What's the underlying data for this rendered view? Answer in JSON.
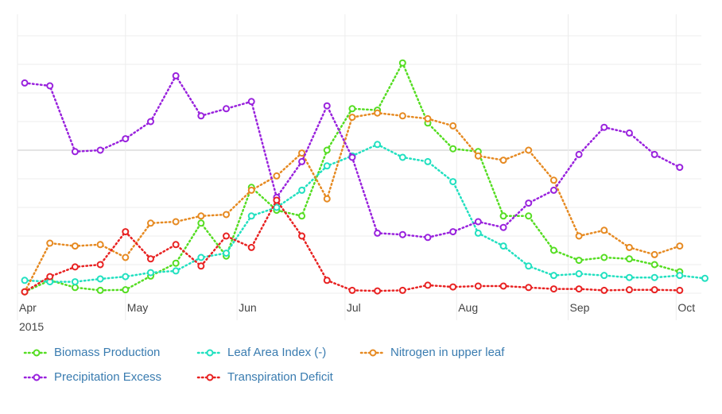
{
  "chart_data": {
    "type": "line",
    "x_axis": {
      "type": "date",
      "range": [
        "2015-04-01",
        "2015-10-08"
      ],
      "ticks": [
        {
          "date": "2015-04-01",
          "label": "Apr",
          "sublabel": "2015"
        },
        {
          "date": "2015-05-01",
          "label": "May"
        },
        {
          "date": "2015-06-01",
          "label": "Jun"
        },
        {
          "date": "2015-07-01",
          "label": "Jul"
        },
        {
          "date": "2015-08-01",
          "label": "Aug"
        },
        {
          "date": "2015-09-01",
          "label": "Sep"
        },
        {
          "date": "2015-10-01",
          "label": "Oct"
        }
      ]
    },
    "y_axis": {
      "range": [
        0,
        10
      ],
      "gridlines": [
        0,
        1,
        2,
        3,
        4,
        5,
        6,
        7,
        8,
        9
      ],
      "highlight_gridline": 5,
      "tick_labels": "none"
    },
    "grid": true,
    "legend_position": "bottom-left",
    "series": [
      {
        "name": "Biomass Production",
        "color": "#55dd22",
        "marker": "circle",
        "line": "dotted",
        "points": [
          [
            "2015-04-03",
            0.05
          ],
          [
            "2015-04-10",
            0.45
          ],
          [
            "2015-04-17",
            0.2
          ],
          [
            "2015-04-24",
            0.1
          ],
          [
            "2015-05-01",
            0.12
          ],
          [
            "2015-05-08",
            0.6
          ],
          [
            "2015-05-15",
            1.05
          ],
          [
            "2015-05-22",
            2.45
          ],
          [
            "2015-05-29",
            1.3
          ],
          [
            "2015-06-05",
            3.7
          ],
          [
            "2015-06-12",
            2.9
          ],
          [
            "2015-06-19",
            2.7
          ],
          [
            "2015-06-26",
            5.0
          ],
          [
            "2015-07-03",
            6.45
          ],
          [
            "2015-07-10",
            6.4
          ],
          [
            "2015-07-17",
            8.05
          ],
          [
            "2015-07-24",
            5.95
          ],
          [
            "2015-07-31",
            5.05
          ],
          [
            "2015-08-07",
            4.95
          ],
          [
            "2015-08-14",
            2.7
          ],
          [
            "2015-08-21",
            2.7
          ],
          [
            "2015-08-28",
            1.5
          ],
          [
            "2015-09-04",
            1.15
          ],
          [
            "2015-09-11",
            1.25
          ],
          [
            "2015-09-18",
            1.2
          ],
          [
            "2015-09-25",
            1.0
          ],
          [
            "2015-10-02",
            0.75
          ]
        ]
      },
      {
        "name": "Leaf Area Index (-)",
        "color": "#22e0c0",
        "marker": "circle",
        "line": "dotted",
        "points": [
          [
            "2015-04-03",
            0.45
          ],
          [
            "2015-04-10",
            0.4
          ],
          [
            "2015-04-17",
            0.4
          ],
          [
            "2015-04-24",
            0.5
          ],
          [
            "2015-05-01",
            0.58
          ],
          [
            "2015-05-08",
            0.72
          ],
          [
            "2015-05-15",
            0.78
          ],
          [
            "2015-05-22",
            1.25
          ],
          [
            "2015-05-29",
            1.4
          ],
          [
            "2015-06-05",
            2.7
          ],
          [
            "2015-06-12",
            3.0
          ],
          [
            "2015-06-19",
            3.6
          ],
          [
            "2015-06-26",
            4.45
          ],
          [
            "2015-07-03",
            4.8
          ],
          [
            "2015-07-10",
            5.2
          ],
          [
            "2015-07-17",
            4.75
          ],
          [
            "2015-07-24",
            4.6
          ],
          [
            "2015-07-31",
            3.9
          ],
          [
            "2015-08-07",
            2.1
          ],
          [
            "2015-08-14",
            1.65
          ],
          [
            "2015-08-21",
            0.95
          ],
          [
            "2015-08-28",
            0.62
          ],
          [
            "2015-09-04",
            0.68
          ],
          [
            "2015-09-11",
            0.62
          ],
          [
            "2015-09-18",
            0.55
          ],
          [
            "2015-09-25",
            0.55
          ],
          [
            "2015-10-02",
            0.62
          ],
          [
            "2015-10-09",
            0.52
          ]
        ]
      },
      {
        "name": "Nitrogen in upper leaf",
        "color": "#e68a22",
        "marker": "circle",
        "line": "dotted",
        "points": [
          [
            "2015-04-03",
            0.05
          ],
          [
            "2015-04-10",
            1.75
          ],
          [
            "2015-04-17",
            1.65
          ],
          [
            "2015-04-24",
            1.7
          ],
          [
            "2015-05-01",
            1.25
          ],
          [
            "2015-05-08",
            2.45
          ],
          [
            "2015-05-15",
            2.5
          ],
          [
            "2015-05-22",
            2.7
          ],
          [
            "2015-05-29",
            2.75
          ],
          [
            "2015-06-05",
            3.6
          ],
          [
            "2015-06-12",
            4.1
          ],
          [
            "2015-06-19",
            4.9
          ],
          [
            "2015-06-26",
            3.3
          ],
          [
            "2015-07-03",
            6.15
          ],
          [
            "2015-07-10",
            6.3
          ],
          [
            "2015-07-17",
            6.2
          ],
          [
            "2015-07-24",
            6.1
          ],
          [
            "2015-07-31",
            5.85
          ],
          [
            "2015-08-07",
            4.8
          ],
          [
            "2015-08-14",
            4.65
          ],
          [
            "2015-08-21",
            5.0
          ],
          [
            "2015-08-28",
            3.95
          ],
          [
            "2015-09-04",
            2.0
          ],
          [
            "2015-09-11",
            2.2
          ],
          [
            "2015-09-18",
            1.6
          ],
          [
            "2015-09-25",
            1.35
          ],
          [
            "2015-10-02",
            1.65
          ]
        ]
      },
      {
        "name": "Precipitation Excess",
        "color": "#9922dd",
        "marker": "circle",
        "line": "dotted",
        "points": [
          [
            "2015-04-03",
            7.35
          ],
          [
            "2015-04-10",
            7.25
          ],
          [
            "2015-04-17",
            4.95
          ],
          [
            "2015-04-24",
            5.0
          ],
          [
            "2015-05-01",
            5.4
          ],
          [
            "2015-05-08",
            6.0
          ],
          [
            "2015-05-15",
            7.6
          ],
          [
            "2015-05-22",
            6.2
          ],
          [
            "2015-05-29",
            6.45
          ],
          [
            "2015-06-05",
            6.7
          ],
          [
            "2015-06-12",
            3.35
          ],
          [
            "2015-06-19",
            4.6
          ],
          [
            "2015-06-26",
            6.55
          ],
          [
            "2015-07-03",
            4.75
          ],
          [
            "2015-07-10",
            2.1
          ],
          [
            "2015-07-17",
            2.05
          ],
          [
            "2015-07-24",
            1.95
          ],
          [
            "2015-07-31",
            2.15
          ],
          [
            "2015-08-07",
            2.5
          ],
          [
            "2015-08-14",
            2.3
          ],
          [
            "2015-08-21",
            3.15
          ],
          [
            "2015-08-28",
            3.6
          ],
          [
            "2015-09-04",
            4.85
          ],
          [
            "2015-09-11",
            5.8
          ],
          [
            "2015-09-18",
            5.6
          ],
          [
            "2015-09-25",
            4.85
          ],
          [
            "2015-10-02",
            4.4
          ]
        ]
      },
      {
        "name": "Transpiration Deficit",
        "color": "#e82222",
        "marker": "circle",
        "line": "dotted",
        "points": [
          [
            "2015-04-03",
            0.05
          ],
          [
            "2015-04-10",
            0.58
          ],
          [
            "2015-04-17",
            0.92
          ],
          [
            "2015-04-24",
            1.0
          ],
          [
            "2015-05-01",
            2.15
          ],
          [
            "2015-05-08",
            1.2
          ],
          [
            "2015-05-15",
            1.7
          ],
          [
            "2015-05-22",
            0.95
          ],
          [
            "2015-05-29",
            2.0
          ],
          [
            "2015-06-05",
            1.6
          ],
          [
            "2015-06-12",
            3.25
          ],
          [
            "2015-06-19",
            2.0
          ],
          [
            "2015-06-26",
            0.45
          ],
          [
            "2015-07-03",
            0.1
          ],
          [
            "2015-07-10",
            0.08
          ],
          [
            "2015-07-17",
            0.1
          ],
          [
            "2015-07-24",
            0.28
          ],
          [
            "2015-07-31",
            0.22
          ],
          [
            "2015-08-07",
            0.25
          ],
          [
            "2015-08-14",
            0.25
          ],
          [
            "2015-08-21",
            0.2
          ],
          [
            "2015-08-28",
            0.15
          ],
          [
            "2015-09-04",
            0.15
          ],
          [
            "2015-09-11",
            0.1
          ],
          [
            "2015-09-18",
            0.12
          ],
          [
            "2015-09-25",
            0.12
          ],
          [
            "2015-10-02",
            0.1
          ]
        ]
      }
    ]
  },
  "legend": {
    "rows": [
      [
        0,
        1,
        2
      ],
      [
        3,
        4
      ]
    ]
  }
}
